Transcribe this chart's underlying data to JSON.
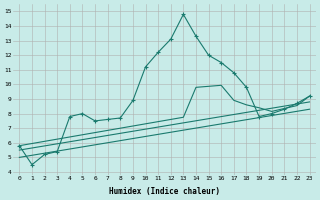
{
  "title": "",
  "xlabel": "Humidex (Indice chaleur)",
  "background_color": "#c8ebe8",
  "grid_color": "#b0b0b0",
  "line_color": "#1a7a6e",
  "xlim": [
    -0.5,
    23.5
  ],
  "ylim": [
    3.8,
    15.5
  ],
  "xticks": [
    0,
    1,
    2,
    3,
    4,
    5,
    6,
    7,
    8,
    9,
    10,
    11,
    12,
    13,
    14,
    15,
    16,
    17,
    18,
    19,
    20,
    21,
    22,
    23
  ],
  "yticks": [
    4,
    5,
    6,
    7,
    8,
    9,
    10,
    11,
    12,
    13,
    14,
    15
  ],
  "line1_x": [
    0,
    1,
    2,
    3,
    4,
    5,
    6,
    7,
    8,
    9,
    10,
    11,
    12,
    13,
    14,
    15,
    16,
    17,
    18,
    19,
    20,
    21,
    22,
    23
  ],
  "line1_y": [
    5.8,
    4.5,
    5.2,
    5.4,
    7.8,
    8.0,
    7.5,
    7.6,
    7.7,
    8.9,
    11.2,
    12.2,
    13.1,
    14.8,
    13.3,
    12.0,
    11.5,
    10.8,
    9.8,
    7.8,
    8.0,
    8.3,
    8.7,
    9.2
  ],
  "line2_x": [
    0,
    1,
    2,
    3,
    4,
    5,
    6,
    7,
    8,
    9,
    10,
    11,
    12,
    13,
    14,
    15,
    16,
    17,
    18,
    19,
    20,
    21,
    22,
    23
  ],
  "line2_y": [
    5.8,
    5.95,
    6.1,
    6.25,
    6.4,
    6.55,
    6.7,
    6.85,
    7.0,
    7.15,
    7.3,
    7.45,
    7.6,
    7.75,
    9.8,
    9.87,
    9.94,
    8.91,
    8.6,
    8.4,
    8.15,
    8.35,
    8.55,
    9.2
  ],
  "line3_x": [
    0,
    23
  ],
  "line3_y": [
    5.5,
    8.8
  ],
  "line4_x": [
    0,
    23
  ],
  "line4_y": [
    5.0,
    8.3
  ]
}
